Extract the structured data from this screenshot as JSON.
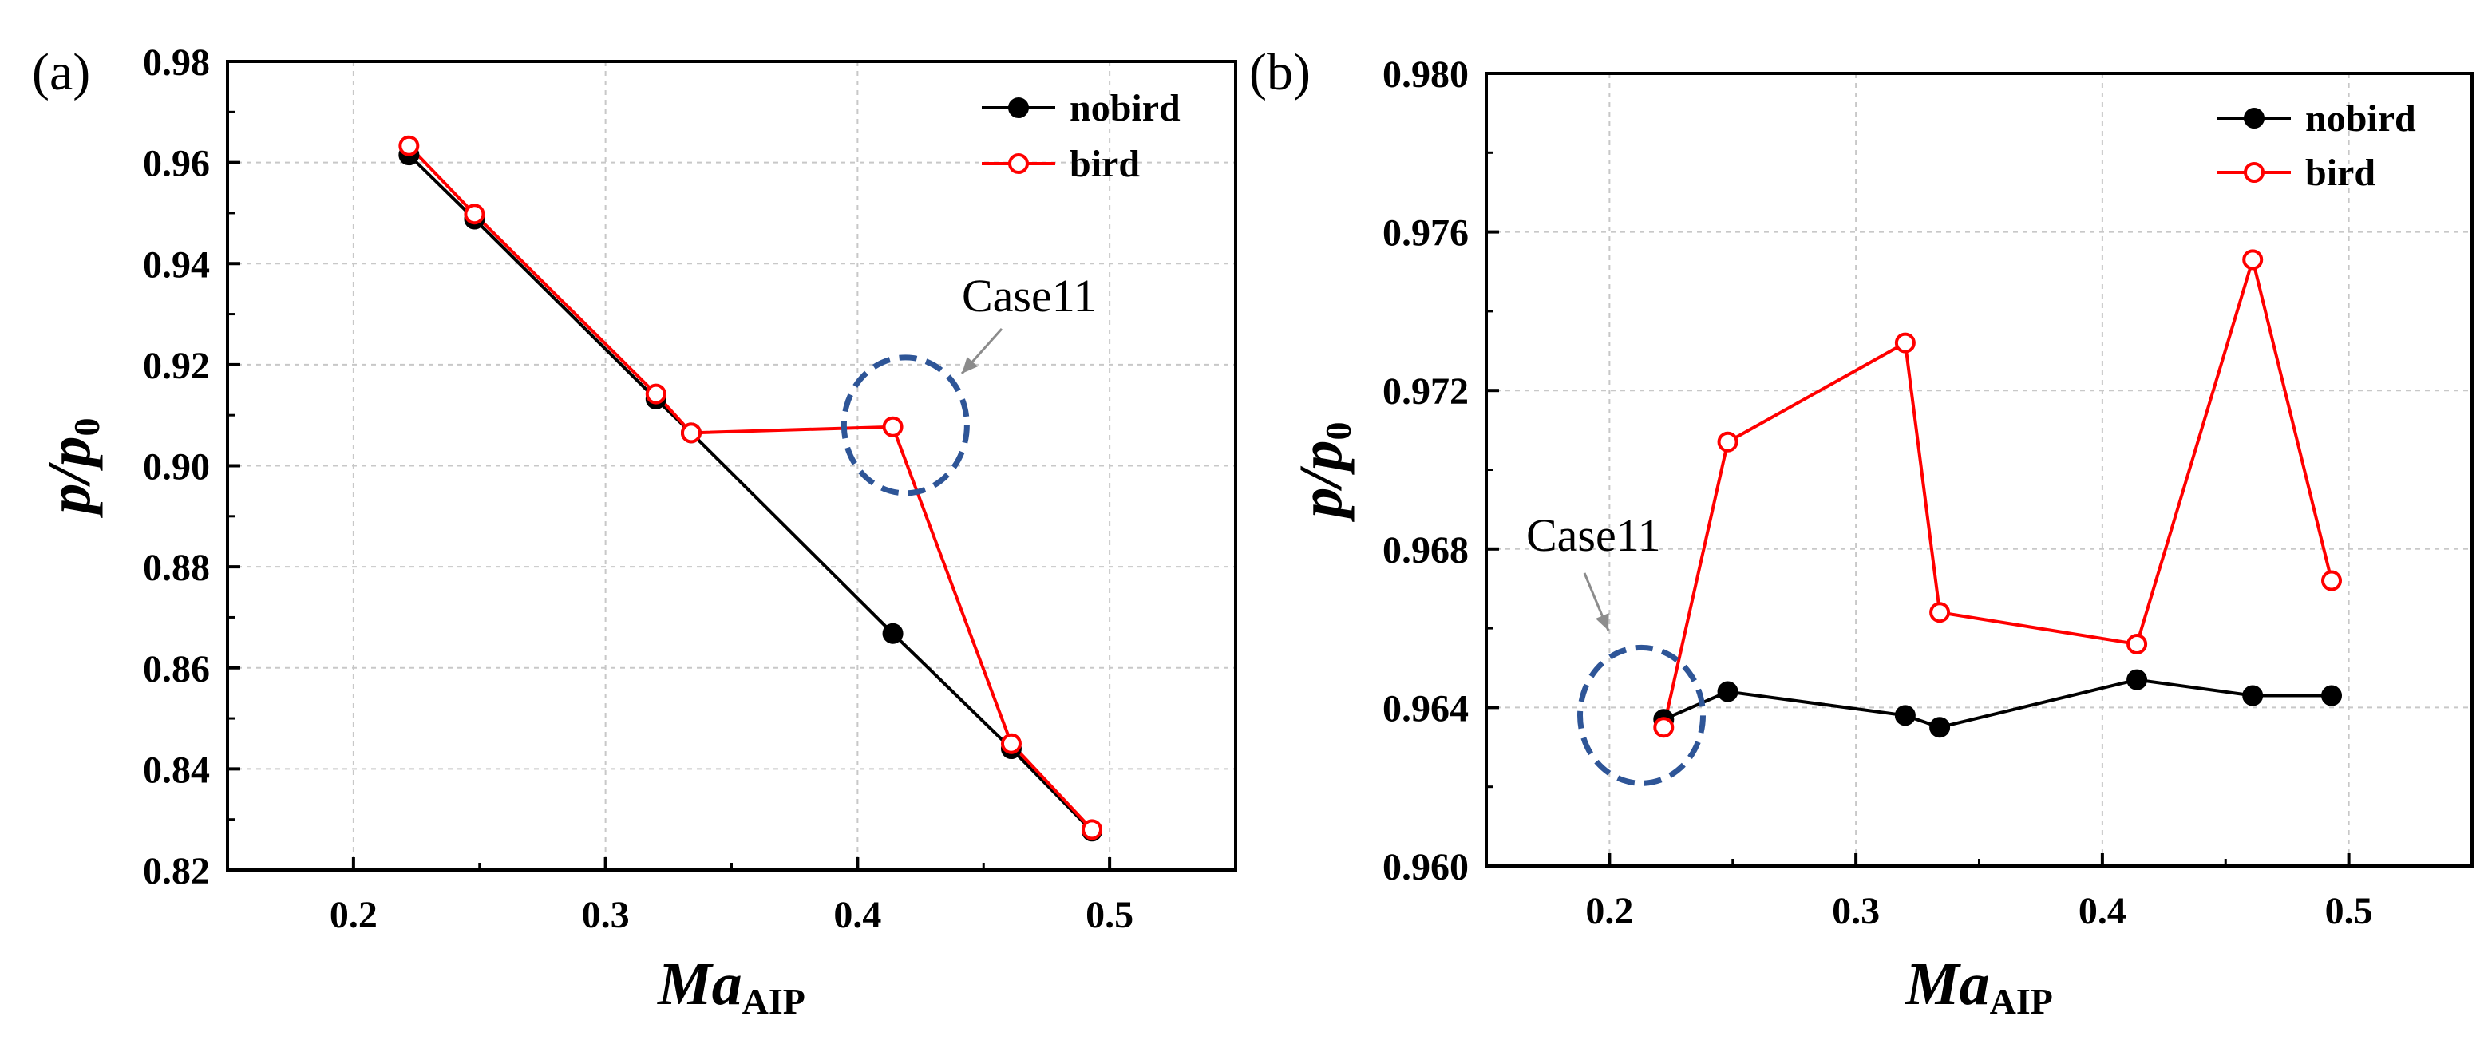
{
  "chart_data": [
    {
      "type": "line",
      "panel_label": "(a)",
      "x": [
        0.222,
        0.248,
        0.32,
        0.334,
        0.414,
        0.461,
        0.493
      ],
      "series": [
        {
          "name": "nobird",
          "color": "#000000",
          "marker": "filled-circle",
          "values": [
            0.9615,
            0.9488,
            0.9132,
            0.9065,
            0.8668,
            0.844,
            0.8277
          ]
        },
        {
          "name": "bird",
          "color": "#ff0000",
          "marker": "open-circle",
          "values": [
            0.9633,
            0.9498,
            0.9142,
            0.9065,
            0.9077,
            0.845,
            0.828
          ]
        }
      ],
      "xlabel": "Ma",
      "xlabel_sub": "AIP",
      "ylabel": "p/p",
      "ylabel_sub": "0",
      "xlim": [
        0.15,
        0.55
      ],
      "ylim": [
        0.82,
        0.98
      ],
      "xticks": [
        0.2,
        0.3,
        0.4,
        0.5
      ],
      "xtick_labels": [
        "0.2",
        "0.3",
        "0.4",
        "0.5"
      ],
      "yticks": [
        0.82,
        0.84,
        0.86,
        0.88,
        0.9,
        0.92,
        0.94,
        0.96,
        0.98
      ],
      "ytick_labels": [
        "0.82",
        "0.84",
        "0.86",
        "0.88",
        "0.90",
        "0.92",
        "0.94",
        "0.96",
        "0.98"
      ],
      "grid": true,
      "legend_position": "top-right",
      "annotation": {
        "text": "Case11",
        "circle_center": [
          0.419,
          0.908
        ],
        "circle_color": "#2e5597"
      }
    },
    {
      "type": "line",
      "panel_label": "(b)",
      "x": [
        0.222,
        0.248,
        0.32,
        0.334,
        0.414,
        0.461,
        0.493
      ],
      "series": [
        {
          "name": "nobird",
          "color": "#000000",
          "marker": "filled-circle",
          "values": [
            0.9637,
            0.9644,
            0.9638,
            0.9635,
            0.9647,
            0.9643,
            0.9643
          ]
        },
        {
          "name": "bird",
          "color": "#ff0000",
          "marker": "open-circle",
          "values": [
            0.9635,
            0.9707,
            0.9732,
            0.9664,
            0.9656,
            0.9753,
            0.9672
          ]
        }
      ],
      "xlabel": "Ma",
      "xlabel_sub": "AIP",
      "ylabel": "p/p",
      "ylabel_sub": "0",
      "xlim": [
        0.15,
        0.55
      ],
      "ylim": [
        0.96,
        0.98
      ],
      "xticks": [
        0.2,
        0.3,
        0.4,
        0.5
      ],
      "xtick_labels": [
        "0.2",
        "0.3",
        "0.4",
        "0.5"
      ],
      "yticks": [
        0.96,
        0.964,
        0.968,
        0.972,
        0.976,
        0.98
      ],
      "ytick_labels": [
        "0.960",
        "0.964",
        "0.968",
        "0.972",
        "0.976",
        "0.980"
      ],
      "grid": true,
      "legend_position": "top-right",
      "annotation": {
        "text": "Case11",
        "circle_center": [
          0.213,
          0.9638
        ],
        "circle_color": "#2e5597"
      }
    }
  ]
}
